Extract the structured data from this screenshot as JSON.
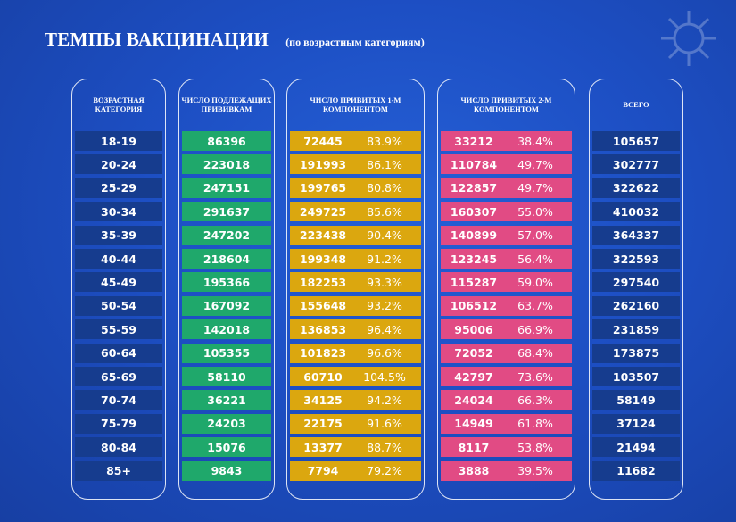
{
  "title": "ТЕМПЫ ВАКЦИНАЦИИ",
  "subtitle": "(по возрастным категориям)",
  "headers": {
    "age": "ВОЗРАСТНАЯ КАТЕГОРИЯ",
    "eligible": "ЧИСЛО ПОДЛЕЖАЩИХ ПРИВИВКАМ",
    "first": "ЧИСЛО ПРИВИТЫХ 1-М КОМПОНЕНТОМ",
    "second": "ЧИСЛО ПРИВИТЫХ 2-М КОМПОНЕНТОМ",
    "total": "ВСЕГО"
  },
  "rows": [
    {
      "age": "18-19",
      "eligible": "86396",
      "first": "72445",
      "first_pct": "83.9%",
      "second": "33212",
      "second_pct": "38.4%",
      "total": "105657"
    },
    {
      "age": "20-24",
      "eligible": "223018",
      "first": "191993",
      "first_pct": "86.1%",
      "second": "110784",
      "second_pct": "49.7%",
      "total": "302777"
    },
    {
      "age": "25-29",
      "eligible": "247151",
      "first": "199765",
      "first_pct": "80.8%",
      "second": "122857",
      "second_pct": "49.7%",
      "total": "322622"
    },
    {
      "age": "30-34",
      "eligible": "291637",
      "first": "249725",
      "first_pct": "85.6%",
      "second": "160307",
      "second_pct": "55.0%",
      "total": "410032"
    },
    {
      "age": "35-39",
      "eligible": "247202",
      "first": "223438",
      "first_pct": "90.4%",
      "second": "140899",
      "second_pct": "57.0%",
      "total": "364337"
    },
    {
      "age": "40-44",
      "eligible": "218604",
      "first": "199348",
      "first_pct": "91.2%",
      "second": "123245",
      "second_pct": "56.4%",
      "total": "322593"
    },
    {
      "age": "45-49",
      "eligible": "195366",
      "first": "182253",
      "first_pct": "93.3%",
      "second": "115287",
      "second_pct": "59.0%",
      "total": "297540"
    },
    {
      "age": "50-54",
      "eligible": "167092",
      "first": "155648",
      "first_pct": "93.2%",
      "second": "106512",
      "second_pct": "63.7%",
      "total": "262160"
    },
    {
      "age": "55-59",
      "eligible": "142018",
      "first": "136853",
      "first_pct": "96.4%",
      "second": "95006",
      "second_pct": "66.9%",
      "total": "231859"
    },
    {
      "age": "60-64",
      "eligible": "105355",
      "first": "101823",
      "first_pct": "96.6%",
      "second": "72052",
      "second_pct": "68.4%",
      "total": "173875"
    },
    {
      "age": "65-69",
      "eligible": "58110",
      "first": "60710",
      "first_pct": "104.5%",
      "second": "42797",
      "second_pct": "73.6%",
      "total": "103507"
    },
    {
      "age": "70-74",
      "eligible": "36221",
      "first": "34125",
      "first_pct": "94.2%",
      "second": "24024",
      "second_pct": "66.3%",
      "total": "58149"
    },
    {
      "age": "75-79",
      "eligible": "24203",
      "first": "22175",
      "first_pct": "91.6%",
      "second": "14949",
      "second_pct": "61.8%",
      "total": "37124"
    },
    {
      "age": "80-84",
      "eligible": "15076",
      "first": "13377",
      "first_pct": "88.7%",
      "second": "8117",
      "second_pct": "53.8%",
      "total": "21494"
    },
    {
      "age": "85+",
      "eligible": "9843",
      "first": "7794",
      "first_pct": "79.2%",
      "second": "3888",
      "second_pct": "39.5%",
      "total": "11682"
    }
  ],
  "colors": {
    "background": "#1d4fc4",
    "dark_cell": "#163c8e",
    "eligible": "#1fa86b",
    "first_component": "#dba70f",
    "second_component": "#e14b84"
  },
  "icons": [
    "virus-icon"
  ]
}
